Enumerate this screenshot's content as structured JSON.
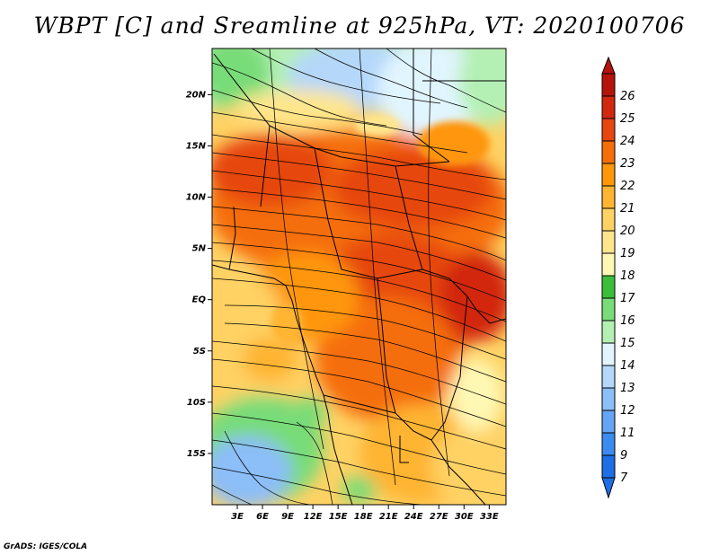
{
  "title": "WBPT [C] and Sreamline at 925hPa, VT: 2020100706",
  "credit": "GrADS: IGES/COLA",
  "map": {
    "lon_range": [
      0,
      35
    ],
    "lat_range": [
      -20,
      24.5
    ],
    "lon_ticks": [
      {
        "value": 3,
        "label": "3E"
      },
      {
        "value": 6,
        "label": "6E"
      },
      {
        "value": 9,
        "label": "9E"
      },
      {
        "value": 12,
        "label": "12E"
      },
      {
        "value": 15,
        "label": "15E"
      },
      {
        "value": 18,
        "label": "18E"
      },
      {
        "value": 21,
        "label": "21E"
      },
      {
        "value": 24,
        "label": "24E"
      },
      {
        "value": 27,
        "label": "27E"
      },
      {
        "value": 30,
        "label": "30E"
      },
      {
        "value": 33,
        "label": "33E"
      }
    ],
    "lat_ticks": [
      {
        "value": 20,
        "label": "20N"
      },
      {
        "value": 15,
        "label": "15N"
      },
      {
        "value": 10,
        "label": "10N"
      },
      {
        "value": 5,
        "label": "5N"
      },
      {
        "value": 0,
        "label": "EQ"
      },
      {
        "value": -5,
        "label": "5S"
      },
      {
        "value": -10,
        "label": "10S"
      },
      {
        "value": -15,
        "label": "15S"
      }
    ]
  },
  "colorbar": {
    "labels": [
      "7",
      "9",
      "11",
      "12",
      "13",
      "14",
      "15",
      "16",
      "17",
      "18",
      "19",
      "20",
      "21",
      "22",
      "23",
      "24",
      "25",
      "26"
    ],
    "colors": [
      "#1e6ee6",
      "#3c8cf0",
      "#64a5f5",
      "#8cbef8",
      "#b4d7fa",
      "#e1f5ff",
      "#b4f0b4",
      "#78dc78",
      "#3cbe3c",
      "#fff8b4",
      "#ffe68c",
      "#ffd264",
      "#ffb432",
      "#ff960a",
      "#f56e0a",
      "#e6460f",
      "#d2280f",
      "#b4140a"
    ]
  }
}
